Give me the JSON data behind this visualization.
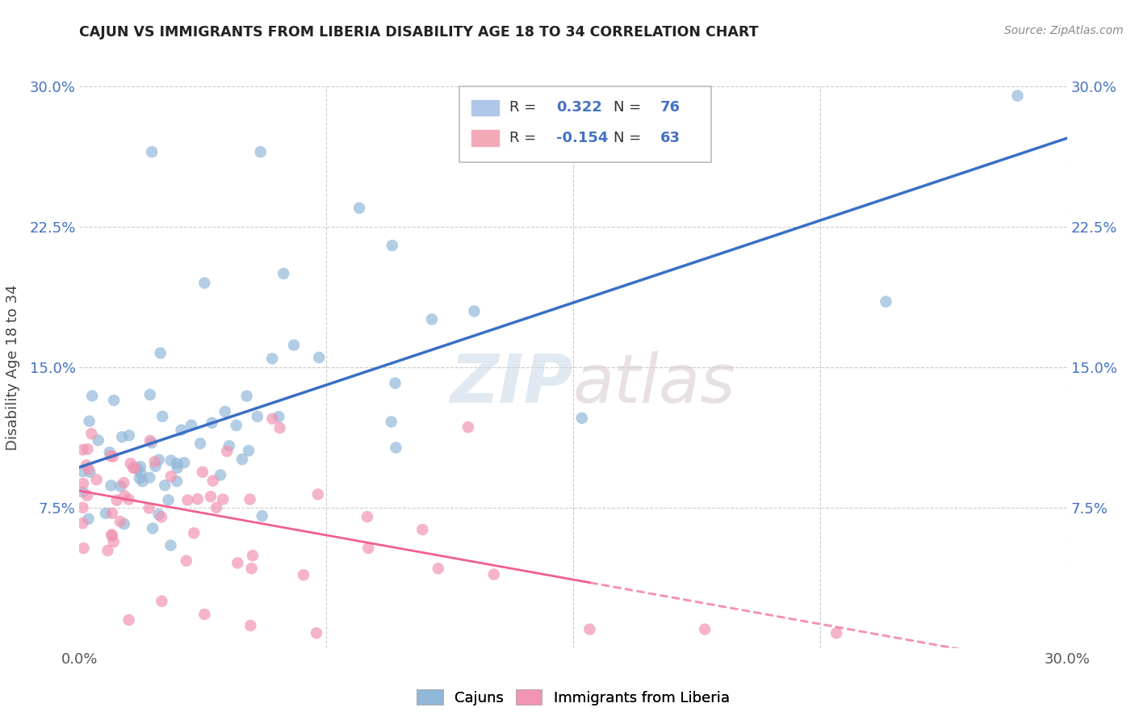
{
  "title": "CAJUN VS IMMIGRANTS FROM LIBERIA DISABILITY AGE 18 TO 34 CORRELATION CHART",
  "source": "Source: ZipAtlas.com",
  "ylabel": "Disability Age 18 to 34",
  "xlim": [
    0.0,
    0.3
  ],
  "ylim": [
    0.0,
    0.3
  ],
  "xtick_labels": [
    "0.0%",
    "",
    "",
    "",
    "30.0%"
  ],
  "ytick_labels": [
    "",
    "7.5%",
    "15.0%",
    "22.5%",
    "30.0%"
  ],
  "right_ytick_labels": [
    "7.5%",
    "15.0%",
    "22.5%",
    "30.0%"
  ],
  "watermark_text": "ZIPatlas",
  "cajun_color": "#92b8d9",
  "liberia_color": "#f195b2",
  "cajun_line_color": "#3a6fc4",
  "liberia_line_color": "#f06090",
  "background_color": "#ffffff",
  "grid_color": "#cccccc",
  "tick_color": "#4472c4",
  "legend_box_color": "#aec6e8",
  "legend_box_color2": "#f4a9b8",
  "leg_r1": "0.322",
  "leg_n1": "76",
  "leg_r2": "-0.154",
  "leg_n2": "63"
}
